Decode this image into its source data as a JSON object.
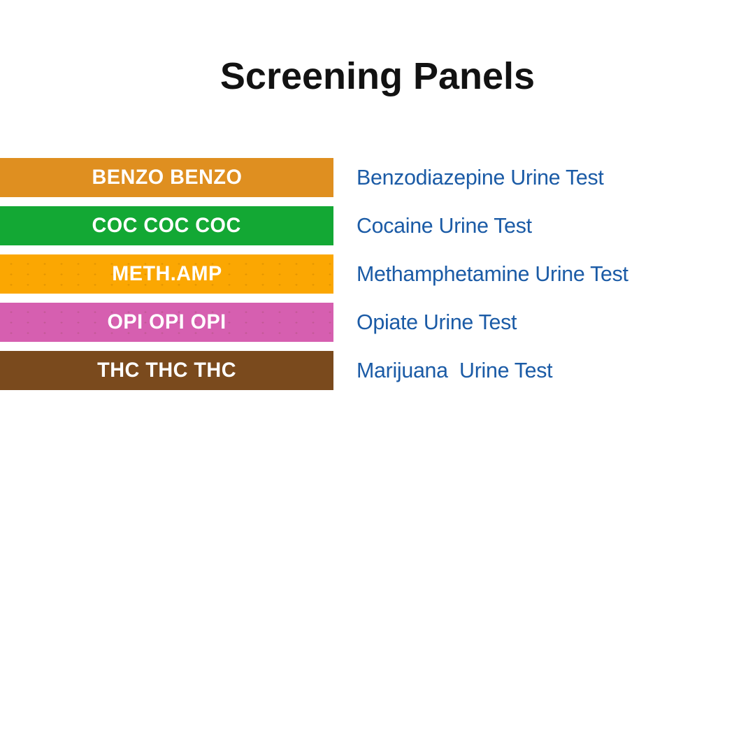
{
  "title": "Screening Panels",
  "colors": {
    "title_text": "#121212",
    "test_name_text": "#1b5ba6",
    "band_code_text": "#ffffff"
  },
  "panels": [
    {
      "code": "BENZO BENZO",
      "name": "Benzodiazepine Urine Test",
      "color": "#df8f20",
      "textured": false
    },
    {
      "code": "COC COC COC",
      "name": "Cocaine Urine Test",
      "color": "#13a834",
      "textured": false
    },
    {
      "code": "METH.AMP",
      "name": "Methamphetamine Urine Test",
      "color": "#fba702",
      "textured": true
    },
    {
      "code": "OPI OPI OPI",
      "name": "Opiate Urine Test",
      "color": "#d65fb0",
      "textured": true
    },
    {
      "code": "THC THC THC",
      "name": "Marijuana  Urine Test",
      "color": "#7a4a1d",
      "textured": false
    }
  ]
}
